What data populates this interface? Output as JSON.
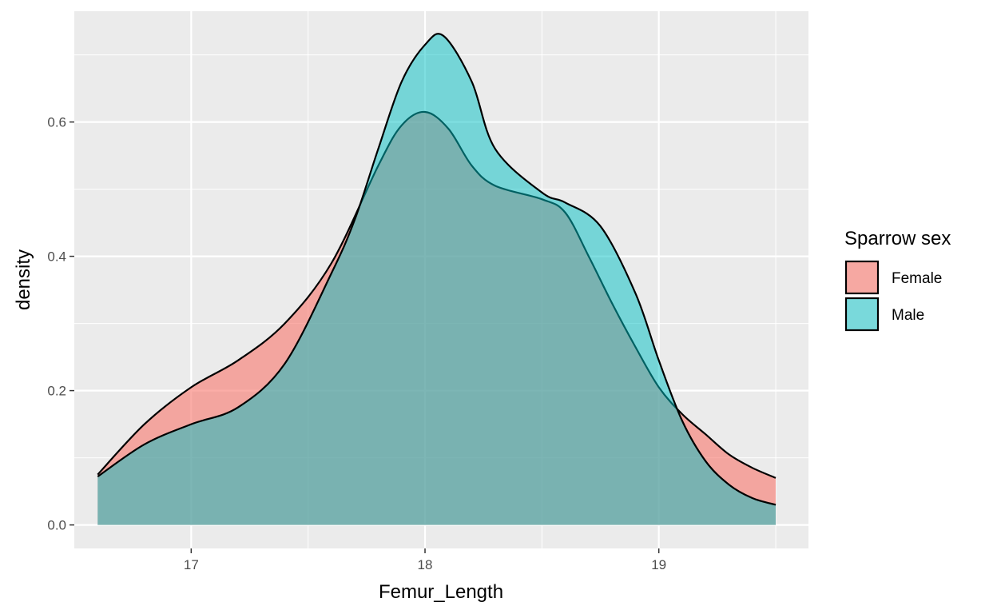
{
  "chart_data": {
    "type": "area",
    "subtype": "density",
    "title": "",
    "xlabel": "Femur_Length",
    "ylabel": "density",
    "xlim": [
      16.5,
      19.64
    ],
    "ylim": [
      -0.035,
      0.765
    ],
    "x_ticks": [
      17,
      18,
      19
    ],
    "x_tick_labels": [
      "17",
      "18",
      "19"
    ],
    "y_ticks": [
      0.0,
      0.2,
      0.4,
      0.6
    ],
    "y_tick_labels": [
      "0.0",
      "0.2",
      "0.4",
      "0.6"
    ],
    "grid": true,
    "legend": {
      "title": "Sparrow sex",
      "placement": "right",
      "entries": [
        "Female",
        "Male"
      ]
    },
    "series": [
      {
        "name": "Female",
        "color": "#F8766D",
        "fill_opacity": 0.6,
        "x": [
          16.6,
          16.8,
          17.0,
          17.2,
          17.4,
          17.6,
          17.8,
          17.9,
          18.0,
          18.1,
          18.2,
          18.3,
          18.5,
          18.6,
          18.7,
          18.8,
          18.9,
          19.0,
          19.1,
          19.2,
          19.3,
          19.4,
          19.5
        ],
        "y": [
          0.075,
          0.15,
          0.205,
          0.245,
          0.3,
          0.39,
          0.535,
          0.595,
          0.615,
          0.59,
          0.535,
          0.505,
          0.485,
          0.465,
          0.4,
          0.33,
          0.265,
          0.205,
          0.165,
          0.135,
          0.105,
          0.085,
          0.07
        ]
      },
      {
        "name": "Male",
        "color": "#00BFC4",
        "fill_opacity": 0.5,
        "x": [
          16.6,
          16.8,
          17.0,
          17.2,
          17.4,
          17.6,
          17.7,
          17.8,
          17.9,
          18.0,
          18.08,
          18.2,
          18.3,
          18.5,
          18.6,
          18.75,
          18.9,
          19.0,
          19.1,
          19.2,
          19.3,
          19.4,
          19.5
        ],
        "y": [
          0.072,
          0.12,
          0.15,
          0.175,
          0.24,
          0.375,
          0.455,
          0.56,
          0.66,
          0.715,
          0.728,
          0.66,
          0.56,
          0.495,
          0.48,
          0.445,
          0.345,
          0.245,
          0.155,
          0.095,
          0.06,
          0.04,
          0.03
        ]
      }
    ]
  }
}
